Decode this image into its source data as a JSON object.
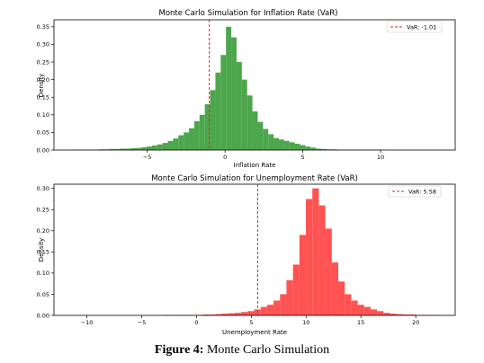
{
  "caption": {
    "label": "Figure 4:",
    "text": " Monte Carlo Simulation"
  },
  "colors": {
    "inflation": "#4ca64c",
    "unemployment": "#ff5252",
    "var_line": "#d62728"
  },
  "chart_data": [
    {
      "type": "bar",
      "title": "Monte Carlo Simulation for Inflation Rate (VaR)",
      "xlabel": "Inflation Rate",
      "ylabel": "Density",
      "xlim": [
        -11.0,
        14.8
      ],
      "ylim": [
        0,
        0.37
      ],
      "xticks": [
        -5,
        0,
        5,
        10
      ],
      "xtick_labels": [
        "−5",
        "0",
        "5",
        "10"
      ],
      "yticks": [
        0.0,
        0.05,
        0.1,
        0.15,
        0.2,
        0.25,
        0.3,
        0.35
      ],
      "ytick_labels": [
        "0.00",
        "0.05",
        "0.10",
        "0.15",
        "0.20",
        "0.25",
        "0.30",
        "0.35"
      ],
      "bin_start": -9.8,
      "bin_width": 0.34,
      "values": [
        0.001,
        0.001,
        0.001,
        0.001,
        0.001,
        0.002,
        0.002,
        0.003,
        0.003,
        0.004,
        0.004,
        0.005,
        0.006,
        0.008,
        0.01,
        0.013,
        0.016,
        0.02,
        0.026,
        0.033,
        0.042,
        0.05,
        0.062,
        0.082,
        0.1,
        0.13,
        0.17,
        0.22,
        0.27,
        0.35,
        0.32,
        0.25,
        0.2,
        0.155,
        0.11,
        0.08,
        0.06,
        0.045,
        0.034,
        0.03,
        0.026,
        0.022,
        0.018,
        0.014,
        0.01,
        0.007,
        0.004,
        0.003,
        0.002,
        0.002,
        0.001,
        0.001,
        0.001,
        0.001,
        0.001,
        0.001,
        0.001,
        0.001,
        0.001
      ],
      "var_value": -1.01,
      "legend_label": "VaR: -1.01",
      "legend_loc": "upper right"
    },
    {
      "type": "bar",
      "title": "Monte Carlo Simulation for Unemployment Rate (VaR)",
      "xlabel": "Unemployment Rate",
      "ylabel": "Density",
      "xlim": [
        -13.0,
        23.6
      ],
      "ylim": [
        0,
        0.31
      ],
      "xticks": [
        -10,
        -5,
        0,
        5,
        10,
        15,
        20
      ],
      "xtick_labels": [
        "−10",
        "−5",
        "0",
        "5",
        "10",
        "15",
        "20"
      ],
      "yticks": [
        0.0,
        0.05,
        0.1,
        0.15,
        0.2,
        0.25,
        0.3
      ],
      "ytick_labels": [
        "0.00",
        "0.05",
        "0.10",
        "0.15",
        "0.20",
        "0.25",
        "0.30"
      ],
      "bin_start": -3.0,
      "bin_width": 0.59,
      "values": [
        0.001,
        0.001,
        0.001,
        0.001,
        0.001,
        0.001,
        0.002,
        0.002,
        0.003,
        0.004,
        0.005,
        0.006,
        0.008,
        0.01,
        0.014,
        0.02,
        0.025,
        0.035,
        0.05,
        0.083,
        0.12,
        0.19,
        0.275,
        0.3,
        0.26,
        0.205,
        0.125,
        0.08,
        0.05,
        0.035,
        0.025,
        0.02,
        0.014,
        0.01,
        0.006,
        0.004,
        0.003,
        0.002,
        0.002,
        0.001,
        0.001,
        0.001,
        0.001
      ],
      "var_value": 5.58,
      "legend_label": "VaR: 5.58",
      "legend_loc": "upper right"
    }
  ]
}
